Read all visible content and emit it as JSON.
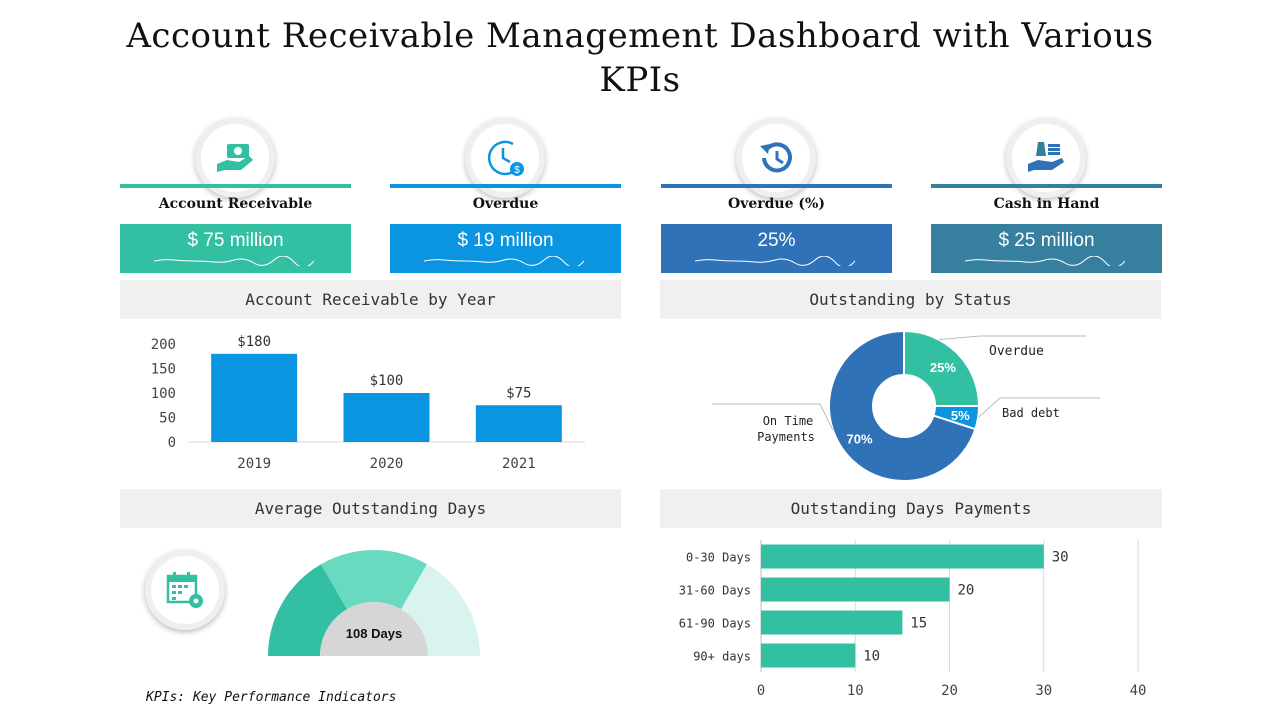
{
  "title": "Account Receivable Management Dashboard with Various KPIs",
  "colors": {
    "teal": "#2fbfa0",
    "blue": "#0b95e0",
    "darkblue": "#2f72b8",
    "steel": "#367f9f"
  },
  "kpis": [
    {
      "label": "Account Receivable",
      "value": "$ 75 million",
      "icon": "hand-money-icon",
      "color": "#33c0a2"
    },
    {
      "label": "Overdue",
      "value": "$ 19 million",
      "icon": "clock-dollar-icon",
      "color": "#0b95e0"
    },
    {
      "label": "Overdue (%)",
      "value": "25%",
      "icon": "history-clock-icon",
      "color": "#2f72b8"
    },
    {
      "label": "Cash in Hand",
      "value": "$ 25 million",
      "icon": "cash-hand-icon",
      "color": "#367f9f"
    }
  ],
  "sections": {
    "ar_by_year": "Account Receivable by Year",
    "by_status": "Outstanding by Status",
    "avg_days": "Average Outstanding Days",
    "days_payments": "Outstanding Days Payments"
  },
  "footer": "KPIs: Key Performance Indicators",
  "chart_data": [
    {
      "type": "bar",
      "title": "Account Receivable by Year",
      "categories": [
        "2019",
        "2020",
        "2021"
      ],
      "values": [
        180,
        100,
        75
      ],
      "data_labels": [
        "$180",
        "$100",
        "$75"
      ],
      "yticks": [
        "0",
        "50",
        "100",
        "150",
        "200"
      ],
      "ylim": [
        0,
        200
      ]
    },
    {
      "type": "pie",
      "title": "Outstanding by Status",
      "labels": [
        "Overdue",
        "Bad debt",
        "On Time Payments"
      ],
      "values": [
        25,
        5,
        70
      ],
      "value_labels": [
        "25%",
        "5%",
        "70%"
      ],
      "on_time_lines": [
        "On Time",
        "Payments"
      ],
      "colors": [
        "#33c0a2",
        "#0b95e0",
        "#2f72b8"
      ]
    },
    {
      "type": "gauge",
      "title": "Average Outstanding Days",
      "value_label": "108 Days",
      "segments": 3
    },
    {
      "type": "bar",
      "orientation": "horizontal",
      "title": "Outstanding Days Payments",
      "categories": [
        "0-30 Days",
        "31-60 Days",
        "61-90 Days",
        "90+ days"
      ],
      "values": [
        30,
        20,
        15,
        10
      ],
      "data_labels": [
        "30",
        "20",
        "15",
        "10"
      ],
      "xticks": [
        "0",
        "10",
        "20",
        "30",
        "40"
      ],
      "xlim": [
        0,
        40
      ]
    }
  ]
}
